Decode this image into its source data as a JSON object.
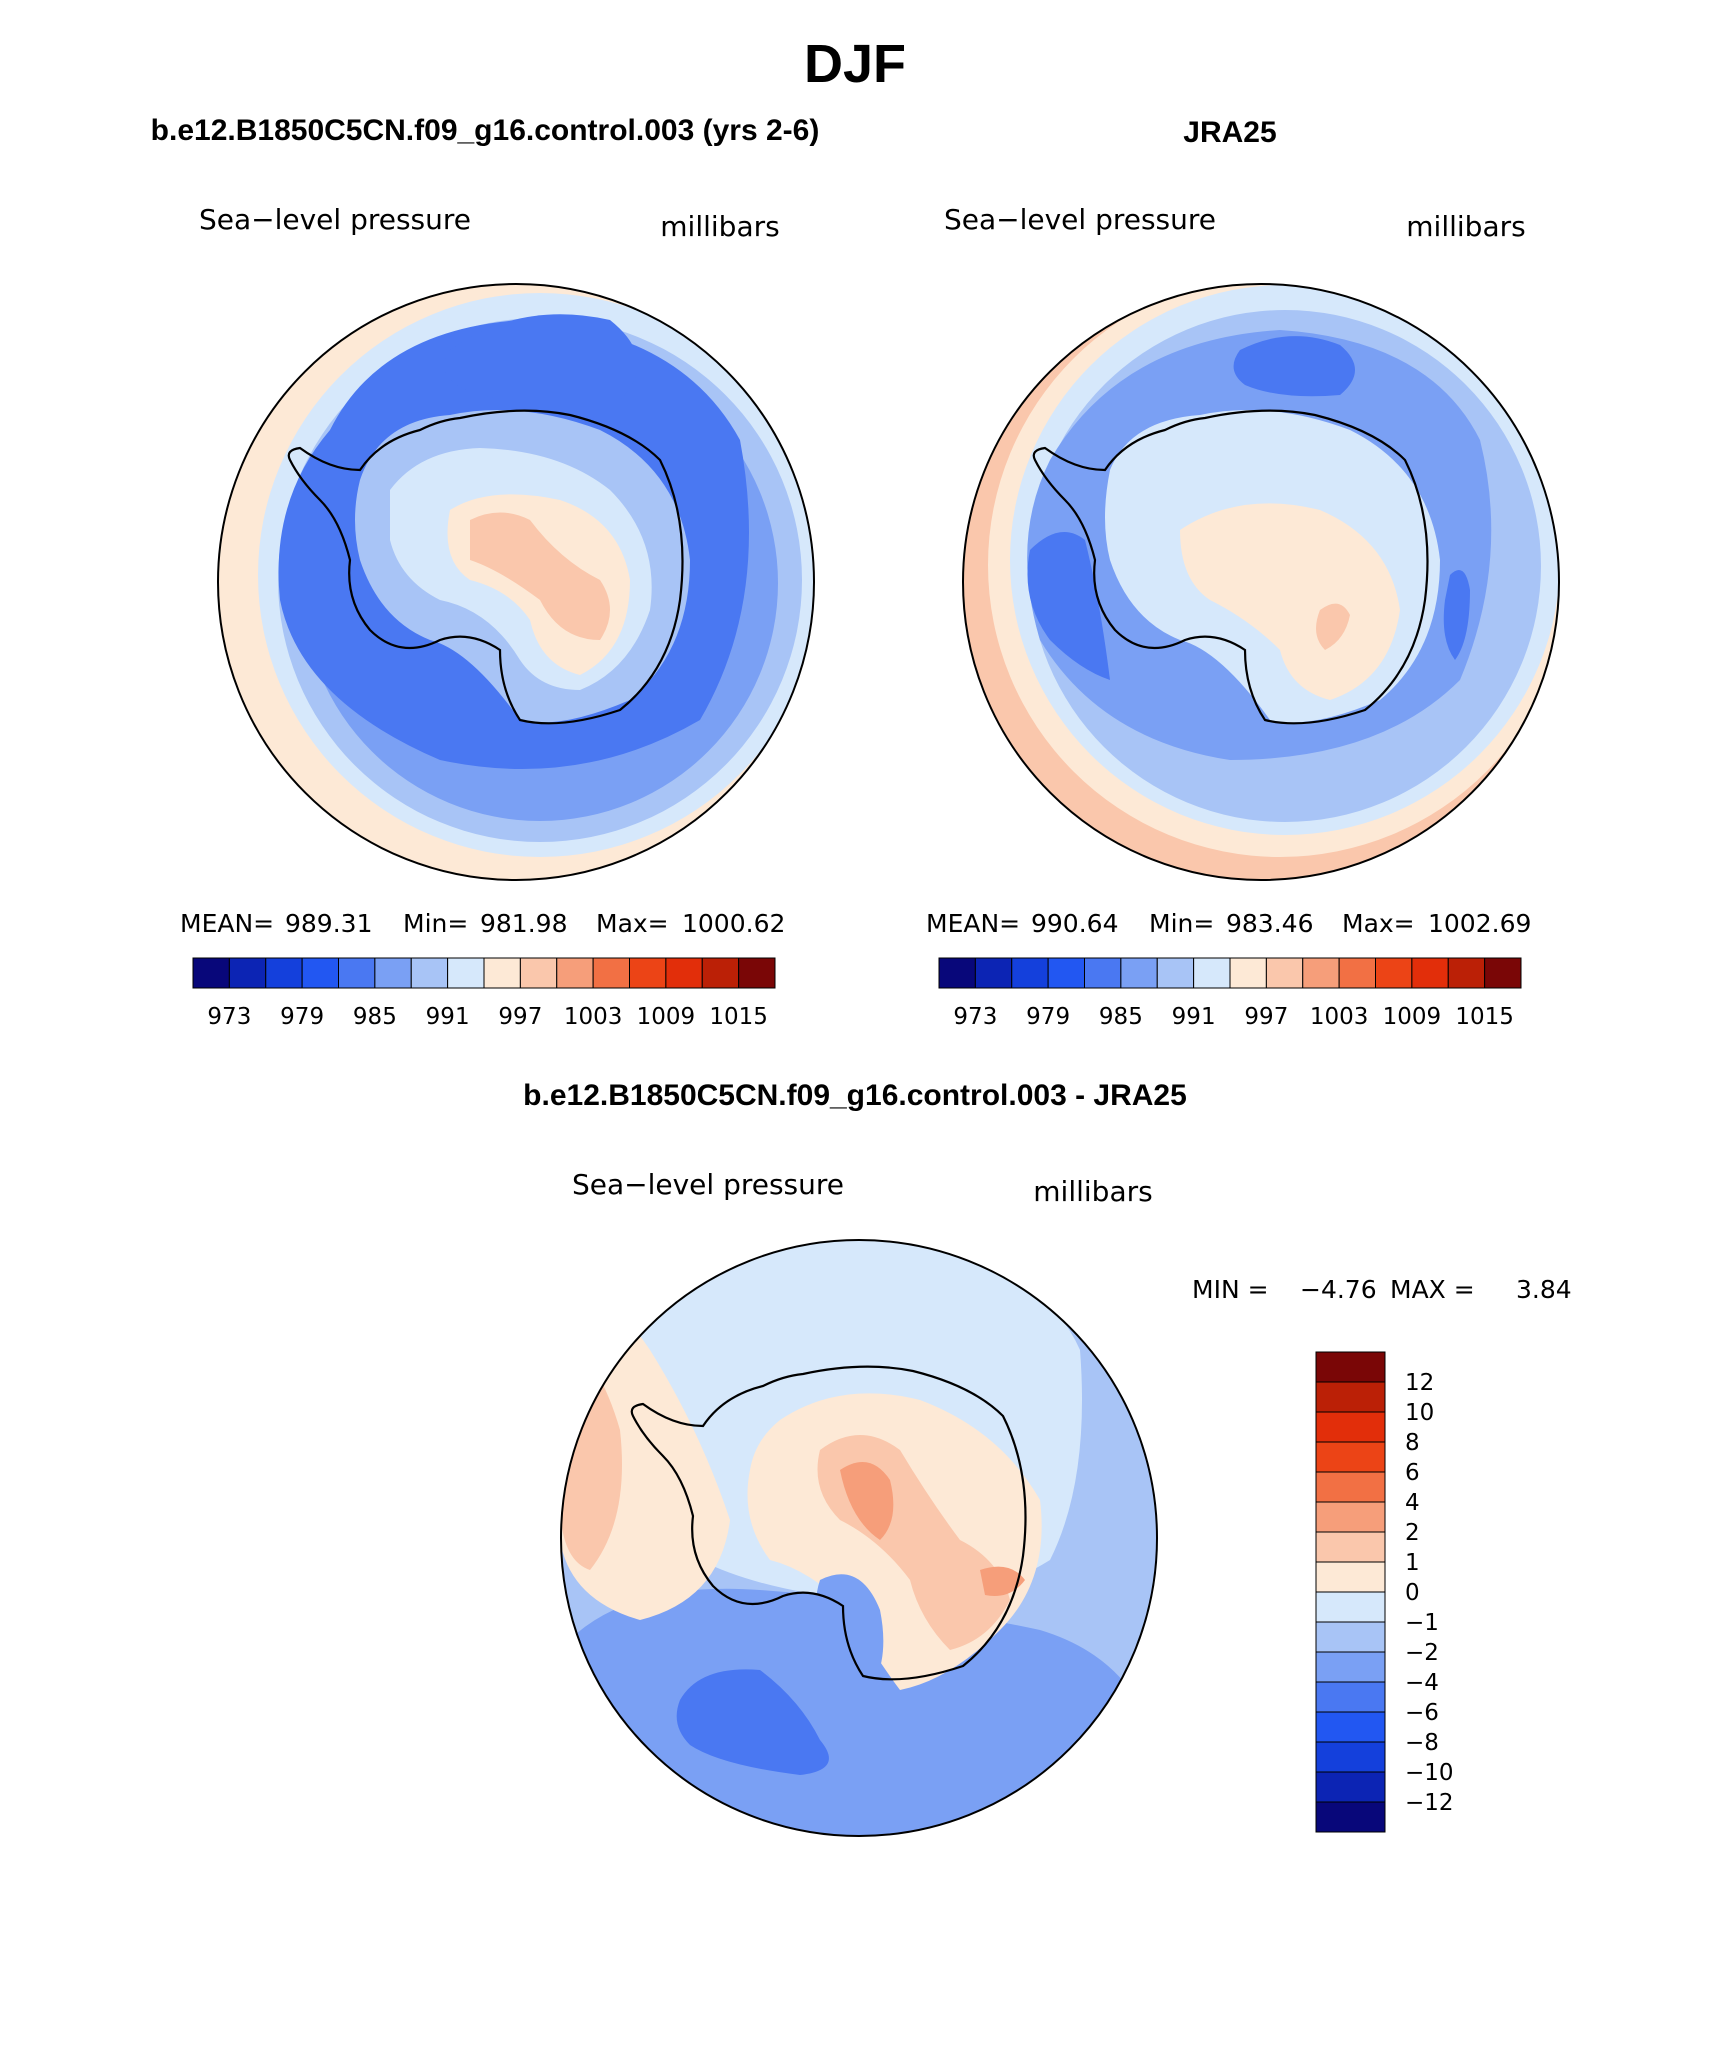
{
  "figure_title": "DJF",
  "colors": {
    "abs_scale": [
      "#08077a",
      "#0c24b4",
      "#1440dc",
      "#2257f2",
      "#4a78f2",
      "#7aa0f4",
      "#a8c4f6",
      "#d6e8fb",
      "#fde9d6",
      "#fac7ac",
      "#f69e7a",
      "#f27044",
      "#ec4416",
      "#e22e0a",
      "#bb2006",
      "#7a0606"
    ],
    "diff_scale": [
      "#08077a",
      "#0c24b4",
      "#1440dc",
      "#2257f2",
      "#4a78f2",
      "#7aa0f4",
      "#a8c4f6",
      "#d6e8fb",
      "#fde9d6",
      "#fac7ac",
      "#f69e7a",
      "#f27044",
      "#ec4416",
      "#e22e0a",
      "#bb2006",
      "#7a0606"
    ]
  },
  "chart_data": [
    {
      "type": "heatmap",
      "projection": "south-polar-stereographic",
      "title": "b.e12.B1850C5CN.f09_g16.control.003 (yrs 2-6)",
      "variable": "Sea−level pressure",
      "units": "millibars",
      "stats": {
        "mean_label": "MEAN=",
        "mean": "989.31",
        "min_label": "Min=",
        "min": "981.98",
        "max_label": "Max=",
        "max": "1000.62"
      },
      "levels": [
        "973",
        "979",
        "985",
        "991",
        "997",
        "1003",
        "1009",
        "1015"
      ],
      "level_values": [
        973,
        976,
        979,
        982,
        985,
        988,
        991,
        994,
        997,
        1000,
        1003,
        1006,
        1009,
        1012,
        1015
      ],
      "value_range": [
        970,
        1018
      ],
      "colorbar_orientation": "horizontal"
    },
    {
      "type": "heatmap",
      "projection": "south-polar-stereographic",
      "title": "JRA25",
      "variable": "Sea−level pressure",
      "units": "millibars",
      "stats": {
        "mean_label": "MEAN=",
        "mean": "990.64",
        "min_label": "Min=",
        "min": "983.46",
        "max_label": "Max=",
        "max": "1002.69"
      },
      "levels": [
        "973",
        "979",
        "985",
        "991",
        "997",
        "1003",
        "1009",
        "1015"
      ],
      "level_values": [
        973,
        976,
        979,
        982,
        985,
        988,
        991,
        994,
        997,
        1000,
        1003,
        1006,
        1009,
        1012,
        1015
      ],
      "value_range": [
        970,
        1018
      ],
      "colorbar_orientation": "horizontal"
    },
    {
      "type": "heatmap",
      "projection": "south-polar-stereographic",
      "title": "b.e12.B1850C5CN.f09_g16.control.003 - JRA25",
      "variable": "Sea−level pressure",
      "units": "millibars",
      "stats": {
        "min_label": "MIN =",
        "min": "−4.76",
        "max_label": "MAX =",
        "max": "3.84"
      },
      "levels": [
        "12",
        "10",
        "8",
        "6",
        "4",
        "2",
        "1",
        "0",
        "−1",
        "−2",
        "−4",
        "−6",
        "−8",
        "−10",
        "−12"
      ],
      "level_values": [
        12,
        10,
        8,
        6,
        4,
        2,
        1,
        0,
        -1,
        -2,
        -4,
        -6,
        -8,
        -10,
        -12
      ],
      "value_range": [
        -14,
        14
      ],
      "colorbar_orientation": "vertical"
    }
  ]
}
